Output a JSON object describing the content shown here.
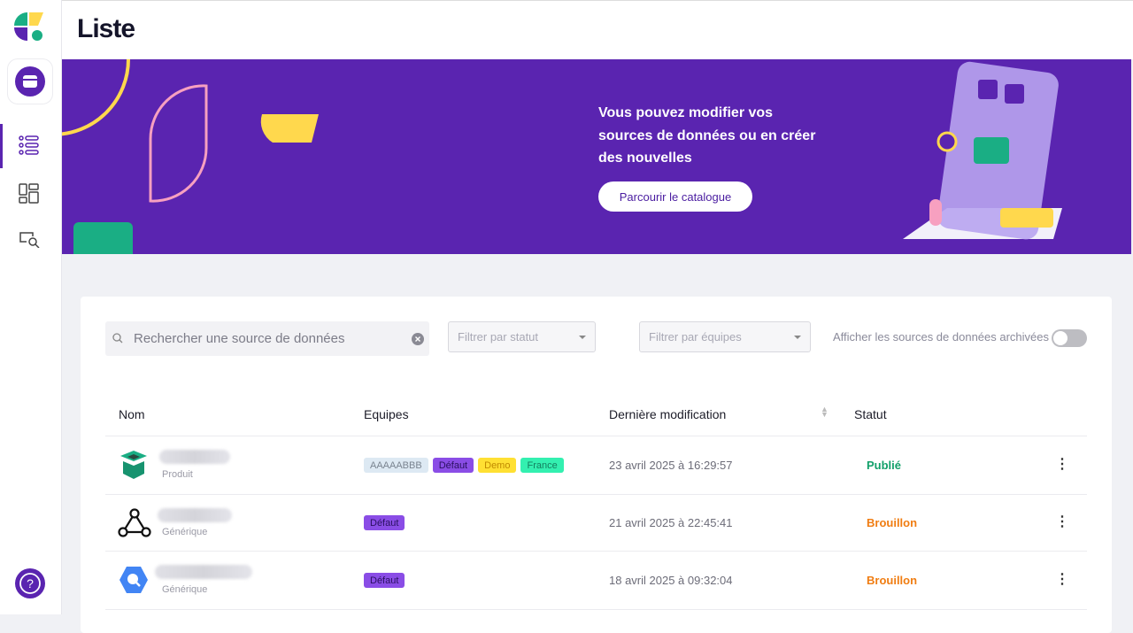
{
  "header": {
    "title": "Liste"
  },
  "banner": {
    "message": "Vous pouvez modifier vos sources de données ou en créer des nouvelles",
    "cta_label": "Parcourir le catalogue"
  },
  "filters": {
    "search_placeholder": "Rechercher une source de données",
    "status_placeholder": "Filtrer par statut",
    "teams_placeholder": "Filtrer par équipes",
    "archived_label": "Afficher les sources de données archivées",
    "archived_on": false
  },
  "table": {
    "headers": {
      "name": "Nom",
      "teams": "Equipes",
      "modified": "Dernière modification",
      "status": "Statut"
    },
    "rows": [
      {
        "type": "Produit",
        "icon": "box-icon",
        "teams": [
          {
            "label": "AAAAABBB",
            "bg": "#dde9f3",
            "fg": "#7a8490"
          },
          {
            "label": "Défaut",
            "bg": "#8a4de6",
            "fg": "#2a1060"
          },
          {
            "label": "Demo",
            "bg": "#ffe033",
            "fg": "#c08a00"
          },
          {
            "label": "France",
            "bg": "#33f0b0",
            "fg": "#148060"
          }
        ],
        "modified": "23 avril 2025 à 16:29:57",
        "status": "Publié",
        "status_color": "#12a06a"
      },
      {
        "type": "Générique",
        "icon": "graph-icon",
        "teams": [
          {
            "label": "Défaut",
            "bg": "#8a4de6",
            "fg": "#2a1060"
          }
        ],
        "modified": "21 avril 2025 à 22:45:41",
        "status": "Brouillon",
        "status_color": "#f07d12"
      },
      {
        "type": "Générique",
        "icon": "bigquery-icon",
        "teams": [
          {
            "label": "Défaut",
            "bg": "#8a4de6",
            "fg": "#2a1060"
          }
        ],
        "modified": "18 avril 2025 à 09:32:04",
        "status": "Brouillon",
        "status_color": "#f07d12"
      }
    ]
  },
  "colors": {
    "brand": "#5a24b0",
    "accent_yellow": "#ffd84d",
    "accent_green": "#1aae84"
  }
}
